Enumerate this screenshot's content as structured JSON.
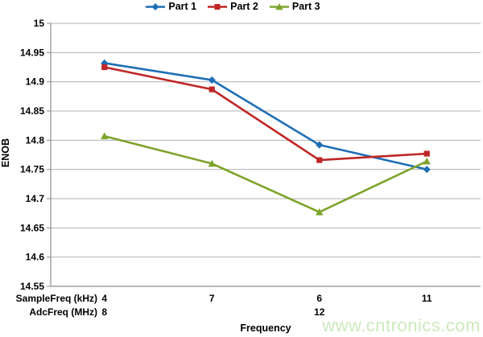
{
  "watermark": "www.cntronics.com",
  "style": {
    "background": "#ffffff",
    "gridline_color": "#b3b3b3",
    "axis_color": "#8c8c8c",
    "text_color": "#000000",
    "watermark_color": "#cde9bc"
  },
  "x_axis": {
    "row1_label": "SampleFreq (kHz)",
    "row2_label": "AdcFreq (MHz)",
    "title": "Frequency"
  },
  "y_axis": {
    "title": "ENOB"
  },
  "chart_data": {
    "type": "line",
    "title": "",
    "xlabel": "Frequency",
    "ylabel": "ENOB",
    "ylim": [
      14.55,
      15
    ],
    "ytick_step": 0.05,
    "grid": true,
    "legend_position": "top",
    "yticks": [
      "15",
      "14.95",
      "14.9",
      "14.85",
      "14.8",
      "14.75",
      "14.7",
      "14.65",
      "14.6",
      "14.55"
    ],
    "categories_samplefreq_khz": [
      "4",
      "7",
      "6",
      "11"
    ],
    "categories_adcfreq_mhz": [
      "8",
      "",
      "12",
      ""
    ],
    "series": [
      {
        "name": "Part 1",
        "marker": "diamond",
        "color": "#1f6fb5",
        "values": [
          14.932,
          14.903,
          14.792,
          14.75
        ]
      },
      {
        "name": "Part 2",
        "marker": "square",
        "color": "#bf2626",
        "values": [
          14.925,
          14.887,
          14.766,
          14.777
        ]
      },
      {
        "name": "Part 3",
        "marker": "triangle",
        "color": "#7da32b",
        "values": [
          14.807,
          14.76,
          14.677,
          14.764
        ]
      }
    ]
  }
}
